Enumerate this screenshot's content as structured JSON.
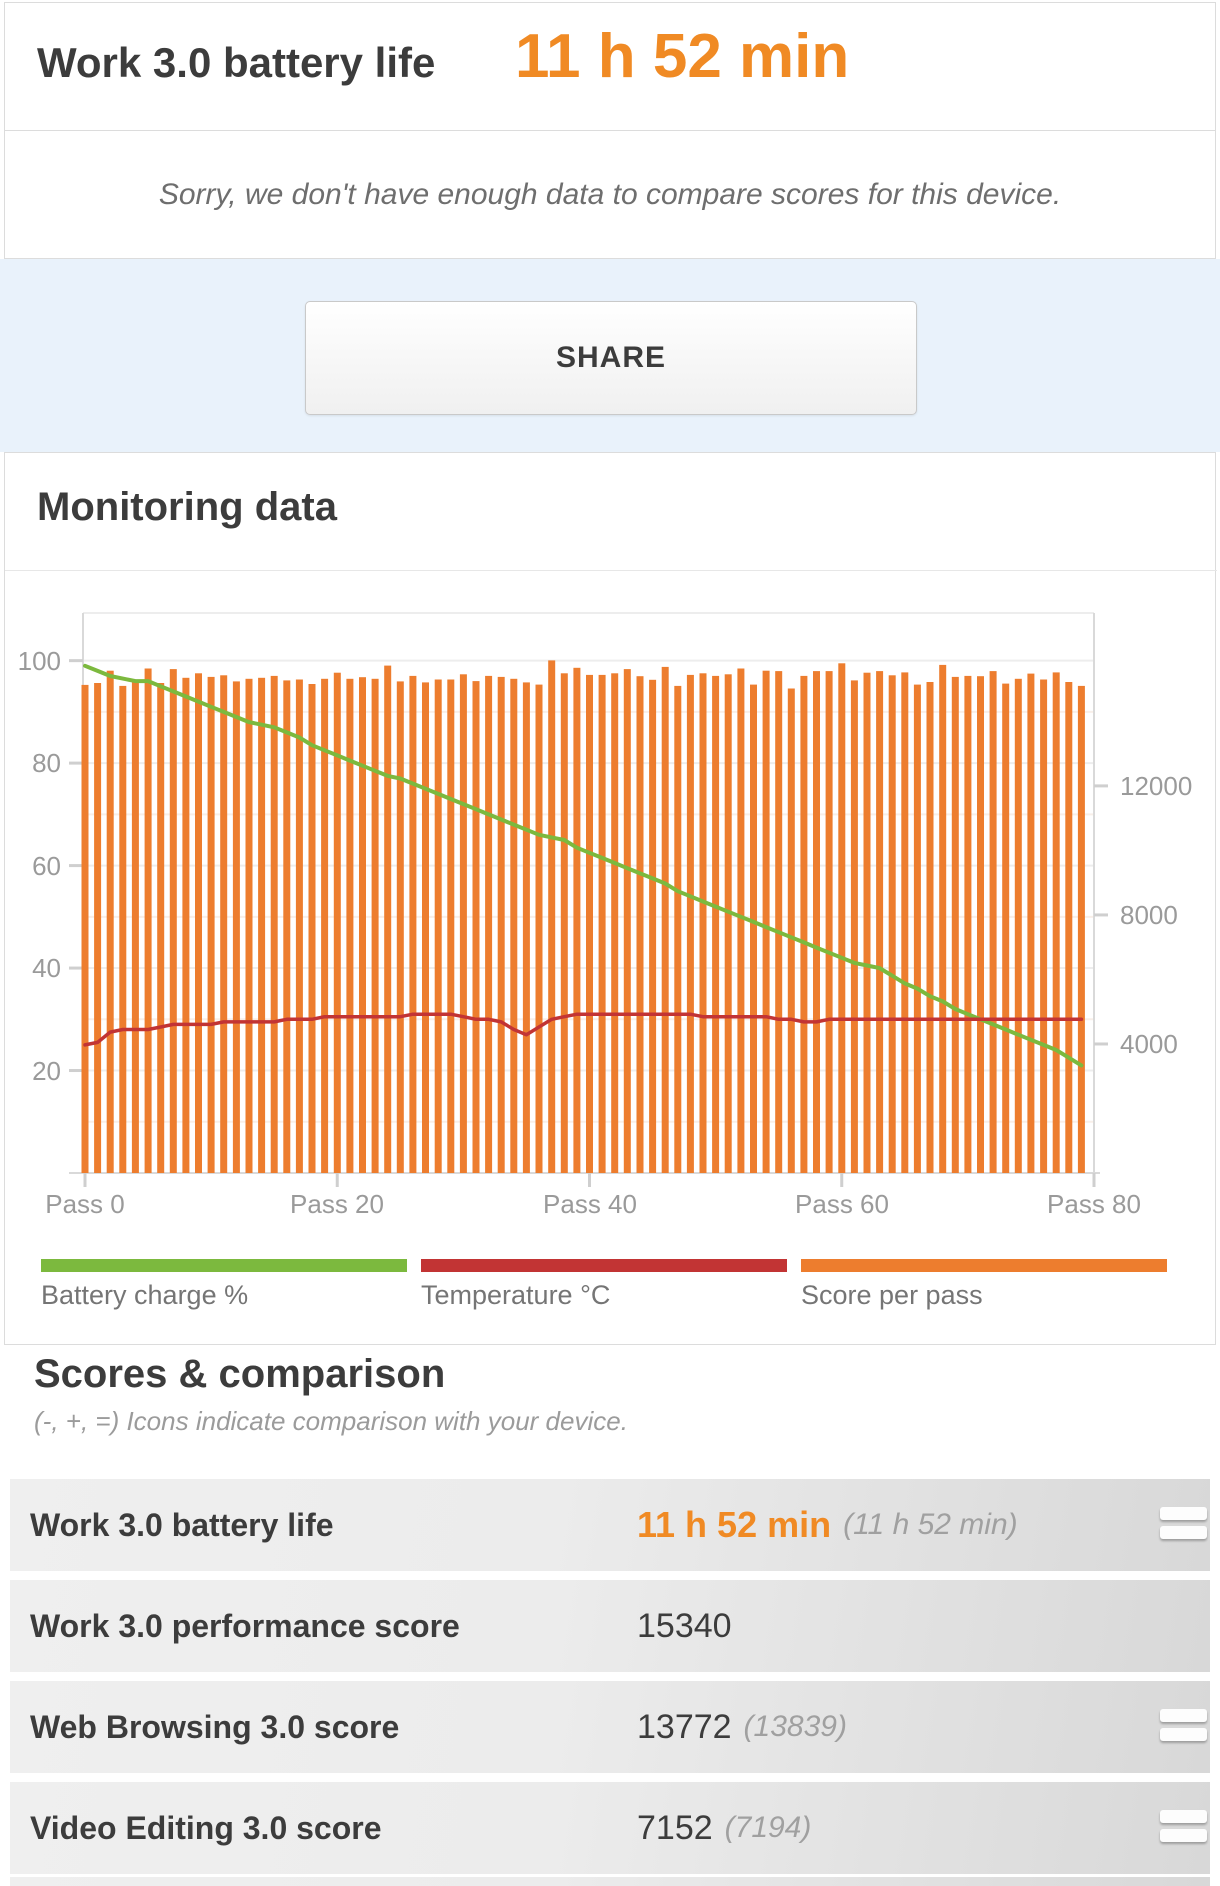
{
  "header": {
    "title": "Work 3.0 battery life",
    "result": "11 h 52 min"
  },
  "notice": "Sorry, we don't have enough data to compare scores for this device.",
  "share": {
    "label": "SHARE"
  },
  "monitoring": {
    "heading": "Monitoring data"
  },
  "colors": {
    "accent_orange": "#f08a24",
    "bar_orange": "#ed7d2e",
    "battery_green": "#7cb93e",
    "temperature_red": "#c23434",
    "grid_minor": "#f8efe9",
    "grid_major": "#ededed",
    "axis_line": "#d9d9d9",
    "tick": "#cfcfcf",
    "band_blue": "#e9f2fb"
  },
  "chart_data": {
    "type": "bar",
    "title": "Monitoring data",
    "xlabel": "",
    "ylabel_left": "",
    "ylabel_right": "",
    "x_tick_labels": [
      "Pass 0",
      "Pass 20",
      "Pass 40",
      "Pass 60",
      "Pass 80"
    ],
    "x_tick_passes": [
      0,
      20,
      40,
      60,
      80
    ],
    "left_axis": {
      "ticks": [
        20,
        40,
        60,
        80,
        100
      ],
      "min": 0,
      "max": 109.3
    },
    "right_axis": {
      "ticks": [
        4000,
        8000,
        12000
      ],
      "min": 0,
      "max": 17360
    },
    "grid": "on",
    "legend_position": "bottom",
    "series": [
      {
        "name": "Battery charge %",
        "type": "line",
        "axis": "left",
        "color": "#7cb93e",
        "values": [
          99,
          98,
          97,
          96.5,
          96,
          96,
          95,
          94,
          93,
          92,
          91,
          90,
          89,
          88,
          87.5,
          87,
          86,
          85,
          83.5,
          82.5,
          81.5,
          80.5,
          79.5,
          78.5,
          77.5,
          77,
          76,
          75,
          74,
          73,
          72,
          71,
          70,
          69,
          68,
          67,
          66,
          65.5,
          65,
          63.5,
          62.5,
          61.5,
          60.5,
          59.5,
          58.5,
          57.5,
          56.5,
          55,
          54,
          53,
          52,
          51,
          50,
          49,
          48,
          47,
          46,
          45,
          44,
          43,
          42,
          41,
          40.5,
          40,
          38.5,
          37,
          36,
          34.5,
          33.5,
          32,
          31,
          30,
          29,
          28,
          27,
          26,
          25,
          24,
          22.5,
          21
        ]
      },
      {
        "name": "Temperature °C",
        "type": "line",
        "axis": "left",
        "color": "#c23434",
        "values": [
          25,
          25.5,
          27.5,
          28,
          28,
          28,
          28.5,
          29,
          29,
          29,
          29,
          29.5,
          29.5,
          29.5,
          29.5,
          29.5,
          30,
          30,
          30,
          30.5,
          30.5,
          30.5,
          30.5,
          30.5,
          30.5,
          30.5,
          31,
          31,
          31,
          31,
          30.5,
          30,
          30,
          29.5,
          28,
          27,
          28.5,
          30,
          30.5,
          31,
          31,
          31,
          31,
          31,
          31,
          31,
          31,
          31,
          31,
          30.5,
          30.5,
          30.5,
          30.5,
          30.5,
          30.5,
          30,
          30,
          29.5,
          29.5,
          30,
          30,
          30,
          30,
          30,
          30,
          30,
          30,
          30,
          30,
          30,
          30,
          30,
          30,
          30,
          30,
          30,
          30,
          30,
          30,
          30
        ]
      },
      {
        "name": "Score per pass",
        "type": "column",
        "axis": "right",
        "color": "#ed7d2e",
        "values": [
          15130,
          15190,
          15570,
          15100,
          15220,
          15640,
          15190,
          15620,
          15350,
          15490,
          15380,
          15430,
          15240,
          15320,
          15350,
          15410,
          15270,
          15300,
          15160,
          15320,
          15510,
          15320,
          15370,
          15320,
          15730,
          15240,
          15410,
          15210,
          15300,
          15300,
          15460,
          15250,
          15410,
          15380,
          15320,
          15210,
          15140,
          15890,
          15490,
          15660,
          15440,
          15440,
          15490,
          15620,
          15400,
          15290,
          15690,
          15100,
          15440,
          15490,
          15410,
          15460,
          15640,
          15140,
          15570,
          15560,
          15020,
          15410,
          15560,
          15560,
          15800,
          15270,
          15510,
          15560,
          15430,
          15520,
          15140,
          15220,
          15750,
          15380,
          15410,
          15400,
          15560,
          15170,
          15320,
          15480,
          15300,
          15520,
          15220,
          15100
        ]
      }
    ],
    "legend": [
      {
        "label": "Battery charge %",
        "color": "#7cb93e"
      },
      {
        "label": "Temperature °C",
        "color": "#c23434"
      },
      {
        "label": "Score per pass",
        "color": "#ed7d2e"
      }
    ]
  },
  "scores": {
    "heading": "Scores & comparison",
    "note": "(-, +, =) Icons indicate comparison with your device.",
    "rows": [
      {
        "label": "Work 3.0 battery life",
        "value": "11 h 52 min",
        "compare": "(11 h 52 min)",
        "accent": true,
        "icon": "equal"
      },
      {
        "label": "Work 3.0 performance score",
        "value": "15340",
        "compare": "",
        "accent": false,
        "icon": ""
      },
      {
        "label": "Web Browsing 3.0 score",
        "value": "13772",
        "compare": "(13839)",
        "accent": false,
        "icon": "equal"
      },
      {
        "label": "Video Editing 3.0 score",
        "value": "7152",
        "compare": "(7194)",
        "accent": false,
        "icon": "equal"
      }
    ]
  }
}
